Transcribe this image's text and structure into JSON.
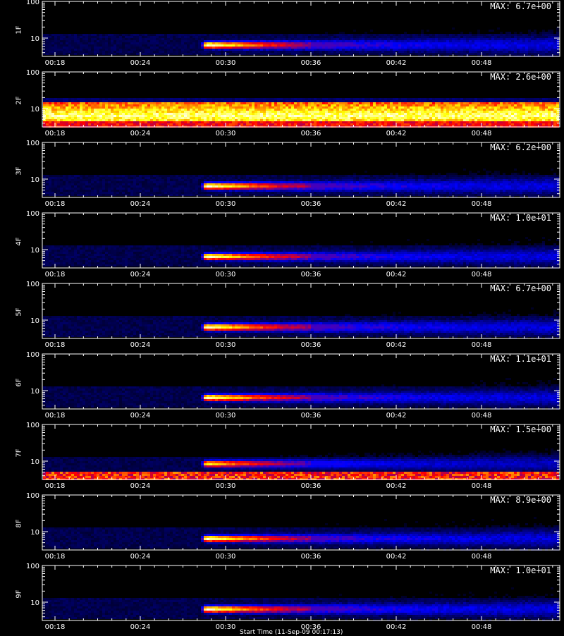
{
  "chart_data": {
    "type": "heatmap",
    "x_ticks": [
      "00:18",
      "00:24",
      "00:30",
      "00:36",
      "00:42",
      "00:48"
    ],
    "y_ticks": [
      "100",
      "10"
    ],
    "xlabel": "Start Time (11-Sep-09 00:17:13)",
    "colormap": [
      "#000000",
      "#0000ff",
      "#ff0000",
      "#ffff00",
      "#ffffff"
    ],
    "panels": [
      {
        "label": "1F",
        "max": "MAX: 6.7e+00",
        "pattern": "burst"
      },
      {
        "label": "2F",
        "max": "MAX: 2.6e+00",
        "pattern": "band"
      },
      {
        "label": "3F",
        "max": "MAX: 6.2e+00",
        "pattern": "burst"
      },
      {
        "label": "4F",
        "max": "MAX: 1.0e+01",
        "pattern": "burst"
      },
      {
        "label": "5F",
        "max": "MAX: 6.7e+00",
        "pattern": "burst"
      },
      {
        "label": "6F",
        "max": "MAX: 1.1e+01",
        "pattern": "burst"
      },
      {
        "label": "7F",
        "max": "MAX: 1.5e+00",
        "pattern": "burst-floor"
      },
      {
        "label": "8F",
        "max": "MAX: 8.9e+00",
        "pattern": "burst"
      },
      {
        "label": "9F",
        "max": "MAX: 1.0e+01",
        "pattern": "burst"
      }
    ]
  }
}
